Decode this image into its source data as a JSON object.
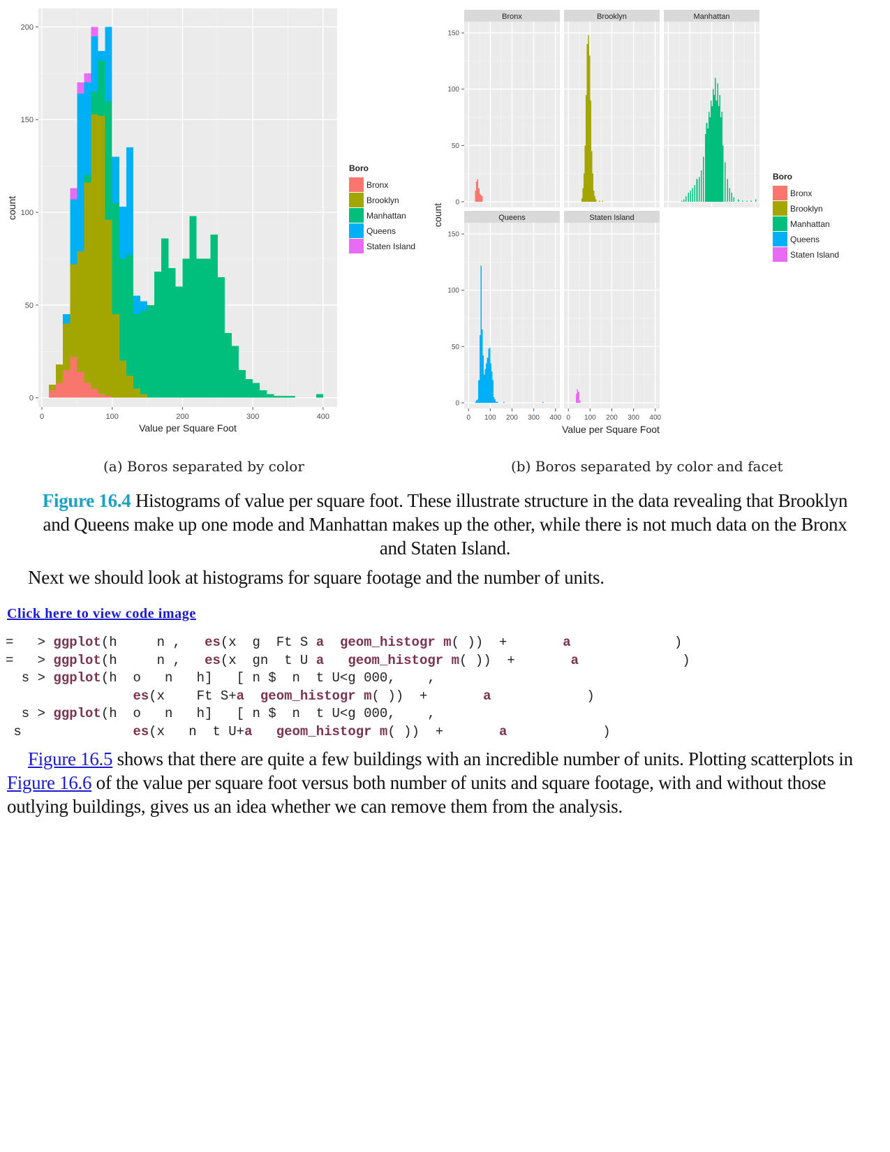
{
  "legend_title": "Boro",
  "boroughs": [
    "Bronx",
    "Brooklyn",
    "Manhattan",
    "Queens",
    "Staten Island"
  ],
  "colors": {
    "Bronx": "#F8766D",
    "Brooklyn": "#A3A500",
    "Manhattan": "#00BF7D",
    "Queens": "#00B0F6",
    "Staten Island": "#E76BF3",
    "panel_bg": "#EBEBEB",
    "strip_bg": "#D9D9D9",
    "link": "#1a1ad0",
    "figure_label": "#1ca0c4",
    "code_keyword": "#7a3450"
  },
  "chart_data": [
    {
      "type": "bar",
      "subtype": "stacked-histogram",
      "xlabel": "Value per Square Foot",
      "ylabel": "count",
      "xlim": [
        -5,
        420
      ],
      "ylim": [
        -5,
        210
      ],
      "xticks": [
        0,
        100,
        200,
        300,
        400
      ],
      "yticks": [
        0,
        50,
        100,
        150,
        200
      ],
      "grid": true,
      "legend_placement": "right",
      "bin_width": 10,
      "bin_starts": [
        10,
        20,
        30,
        40,
        50,
        60,
        70,
        80,
        90,
        100,
        110,
        120,
        130,
        140,
        150,
        160,
        170,
        180,
        190,
        200,
        210,
        220,
        230,
        240,
        250,
        260,
        270,
        280,
        290,
        300,
        310,
        320,
        330,
        340,
        350,
        360,
        370,
        380,
        390
      ],
      "series": [
        {
          "name": "Bronx",
          "values": [
            4,
            8,
            15,
            22,
            14,
            8,
            5,
            2,
            1,
            0,
            0,
            0,
            0,
            0,
            0,
            0,
            0,
            0,
            0,
            0,
            0,
            0,
            0,
            0,
            0,
            0,
            0,
            0,
            0,
            0,
            0,
            0,
            0,
            0,
            0,
            0,
            0,
            0,
            0
          ]
        },
        {
          "name": "Brooklyn",
          "values": [
            3,
            10,
            25,
            50,
            65,
            108,
            148,
            150,
            95,
            45,
            20,
            12,
            5,
            2,
            0,
            0,
            0,
            0,
            0,
            0,
            0,
            0,
            0,
            0,
            0,
            0,
            0,
            0,
            0,
            0,
            0,
            0,
            0,
            0,
            0,
            0,
            0,
            0,
            0
          ]
        },
        {
          "name": "Manhattan",
          "values": [
            0,
            0,
            0,
            0,
            0,
            4,
            12,
            30,
            64,
            60,
            55,
            65,
            40,
            45,
            50,
            68,
            86,
            70,
            60,
            75,
            98,
            75,
            75,
            88,
            65,
            35,
            28,
            15,
            10,
            8,
            4,
            2,
            1,
            1,
            1,
            0,
            0,
            0,
            2
          ]
        },
        {
          "name": "Queens",
          "values": [
            0,
            0,
            5,
            35,
            85,
            50,
            30,
            5,
            40,
            25,
            28,
            58,
            10,
            5,
            0,
            0,
            0,
            0,
            0,
            0,
            0,
            0,
            0,
            0,
            0,
            0,
            0,
            0,
            0,
            0,
            0,
            0,
            0,
            0,
            0,
            0,
            0,
            0,
            0
          ]
        },
        {
          "name": "Staten Island",
          "values": [
            0,
            0,
            0,
            6,
            6,
            5,
            5,
            0,
            0,
            0,
            0,
            0,
            0,
            0,
            0,
            0,
            0,
            0,
            0,
            0,
            0,
            0,
            0,
            0,
            0,
            0,
            0,
            0,
            0,
            0,
            0,
            0,
            0,
            0,
            0,
            0,
            0,
            0,
            0
          ]
        }
      ]
    },
    {
      "type": "bar",
      "subtype": "faceted-histogram",
      "xlabel": "Value per Square Foot",
      "ylabel": "count",
      "facets": [
        "Bronx",
        "Brooklyn",
        "Manhattan",
        "Queens",
        "Staten Island"
      ],
      "xlim": [
        -20,
        420
      ],
      "ylim": [
        -5,
        160
      ],
      "xticks": [
        0,
        100,
        200,
        300,
        400
      ],
      "yticks": [
        0,
        50,
        100,
        150
      ],
      "grid": true,
      "legend_placement": "right",
      "bin_width": 5,
      "series": [
        {
          "name": "Bronx",
          "bin_starts": [
            30,
            35,
            40,
            45,
            50,
            55,
            60
          ],
          "values": [
            10,
            18,
            20,
            12,
            7,
            6,
            5
          ]
        },
        {
          "name": "Brooklyn",
          "bin_starts": [
            60,
            65,
            70,
            75,
            80,
            85,
            90,
            95,
            100,
            105,
            110,
            115,
            120,
            125,
            140,
            155
          ],
          "values": [
            3,
            12,
            25,
            50,
            95,
            140,
            148,
            130,
            90,
            45,
            25,
            10,
            5,
            2,
            1,
            1
          ]
        },
        {
          "name": "Manhattan",
          "bin_starts": [
            60,
            70,
            80,
            90,
            100,
            110,
            120,
            130,
            140,
            150,
            160,
            170,
            175,
            180,
            185,
            190,
            195,
            200,
            205,
            210,
            215,
            220,
            225,
            230,
            235,
            240,
            245,
            250,
            260,
            270,
            280,
            290,
            300,
            320,
            340,
            360,
            380,
            400
          ],
          "values": [
            1,
            2,
            5,
            8,
            10,
            12,
            15,
            20,
            22,
            28,
            40,
            60,
            70,
            65,
            80,
            75,
            90,
            85,
            100,
            95,
            110,
            90,
            105,
            85,
            95,
            75,
            80,
            50,
            35,
            20,
            12,
            8,
            4,
            2,
            1,
            1,
            1,
            2
          ]
        },
        {
          "name": "Queens",
          "bin_starts": [
            30,
            35,
            40,
            45,
            50,
            55,
            60,
            65,
            70,
            75,
            80,
            85,
            90,
            95,
            100,
            105,
            110,
            115,
            120,
            125,
            130,
            160,
            340
          ],
          "values": [
            1,
            2,
            3,
            20,
            60,
            122,
            65,
            42,
            25,
            30,
            35,
            40,
            48,
            49,
            35,
            28,
            20,
            5,
            3,
            1,
            1,
            1,
            1
          ]
        },
        {
          "name": "Staten Island",
          "bin_starts": [
            35,
            40,
            45,
            50
          ],
          "values": [
            8,
            12,
            10,
            2
          ]
        }
      ]
    }
  ],
  "subcaption_a": "(a) Boros separated by color",
  "subcaption_b": "(b) Boros separated by color and facet",
  "caption_label": "Figure 16.4",
  "caption_text": " Histograms of value per square foot. These illustrate structure in the data revealing that Brooklyn and Queens make up one mode and Manhattan makes up the other, while there is not much data on the Bronx and Staten Island.",
  "paragraph1": "Next we should look at histograms for square footage and the number of units.",
  "code_link": "Click here to view code image",
  "code_lines": [
    [
      [
        "=   > ",
        ""
      ],
      [
        "ggplot",
        "k"
      ],
      [
        "(h     n ,   ",
        ""
      ],
      [
        "es",
        "k"
      ],
      [
        "(x  g  Ft S ",
        ""
      ],
      [
        "a",
        "k"
      ],
      [
        "  ",
        ""
      ],
      [
        "geom_histogr m",
        "k"
      ],
      [
        "( ))  +       ",
        ""
      ],
      [
        "a",
        "k"
      ],
      [
        "             )",
        ""
      ]
    ],
    [
      [
        "=   > ",
        ""
      ],
      [
        "ggplot",
        "k"
      ],
      [
        "(h     n ,   ",
        ""
      ],
      [
        "es",
        "k"
      ],
      [
        "(x  gn  t U ",
        ""
      ],
      [
        "a",
        "k"
      ],
      [
        "   ",
        ""
      ],
      [
        "geom_histogr m",
        "k"
      ],
      [
        "( ))  +       ",
        ""
      ],
      [
        "a",
        "k"
      ],
      [
        "             )",
        ""
      ]
    ],
    [
      [
        "  s > ",
        ""
      ],
      [
        "ggplot",
        "k"
      ],
      [
        "(h  o   n   h]   [ n $  n  t U<g 000,    ,",
        ""
      ]
    ],
    [
      [
        "                ",
        ""
      ],
      [
        "es",
        "k"
      ],
      [
        "(x    Ft S+",
        ""
      ],
      [
        "a",
        "k"
      ],
      [
        "  ",
        ""
      ],
      [
        "geom_histogr m",
        "k"
      ],
      [
        "( ))  +       ",
        ""
      ],
      [
        "a",
        "k"
      ],
      [
        "            )",
        ""
      ]
    ],
    [
      [
        "  s > ",
        ""
      ],
      [
        "ggplot",
        "k"
      ],
      [
        "(h  o   n   h]   [ n $  n  t U<g 000,    ,",
        ""
      ]
    ],
    [
      [
        " s              ",
        ""
      ],
      [
        "es",
        "k"
      ],
      [
        "(x   n  t U+",
        ""
      ],
      [
        "a",
        "k"
      ],
      [
        "   ",
        ""
      ],
      [
        "geom_histogr m",
        "k"
      ],
      [
        "( ))  +       ",
        ""
      ],
      [
        "a",
        "k"
      ],
      [
        "            )",
        ""
      ]
    ]
  ],
  "paragraph2": {
    "link1": "Figure 16.5",
    "text1": " shows that there are quite a few buildings with an incredible number of units. Plotting scatterplots in ",
    "link2": "Figure 16.6",
    "text2": " of the value per square foot versus both number of units and square footage, with and without those outlying buildings, gives us an idea whether we can remove them from the analysis."
  }
}
